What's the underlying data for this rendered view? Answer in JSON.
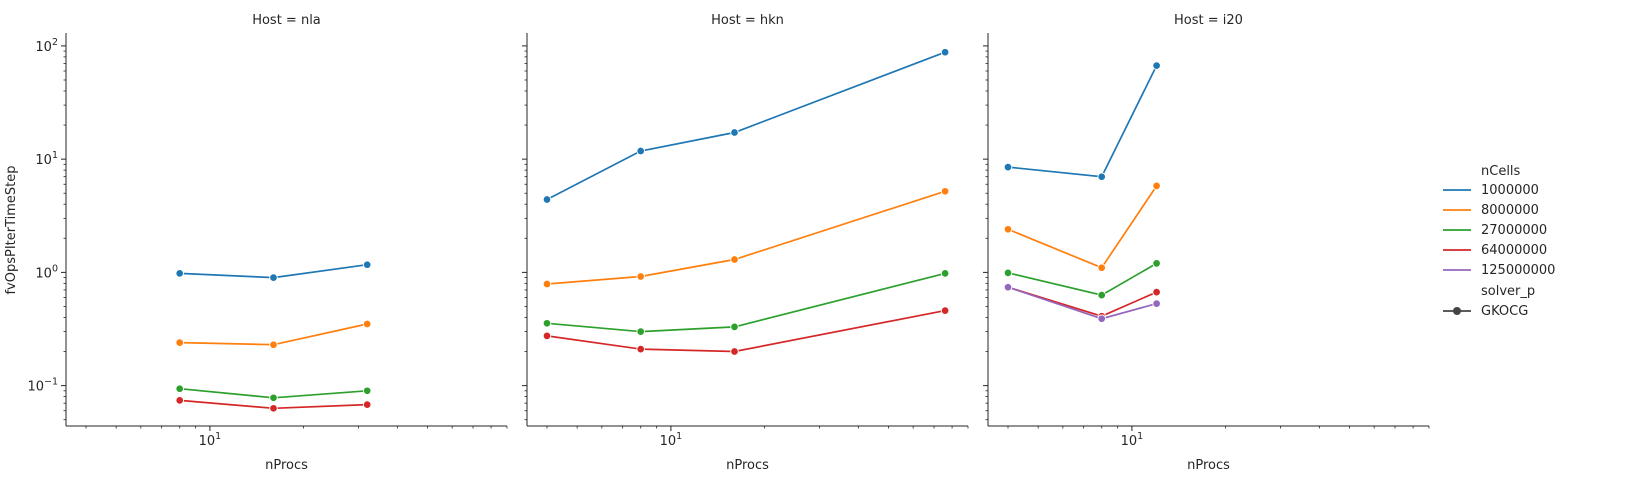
{
  "chart_data": {
    "type": "line",
    "ylabel": "fvOpsPIterTimeStep",
    "xlabel": "nProcs",
    "xscale": "log",
    "yscale": "log",
    "xlim": [
      3.45,
      90
    ],
    "ylim": [
      0.044,
      130
    ],
    "x_tick_major": [
      {
        "value": 10,
        "base": "10",
        "exp": "1"
      }
    ],
    "y_tick_major": [
      {
        "value": 0.1,
        "base": "10",
        "exp": "−1"
      },
      {
        "value": 1,
        "base": "10",
        "exp": "0"
      },
      {
        "value": 10,
        "base": "10",
        "exp": "1"
      },
      {
        "value": 100,
        "base": "10",
        "exp": "2"
      }
    ],
    "grid": false,
    "legend": {
      "position": "right",
      "hue_title": "nCells",
      "hue_entries": [
        {
          "label": "1000000",
          "color": "#1f77b4"
        },
        {
          "label": "8000000",
          "color": "#ff7f0e"
        },
        {
          "label": "27000000",
          "color": "#2ca02c"
        },
        {
          "label": "64000000",
          "color": "#d62728"
        },
        {
          "label": "125000000",
          "color": "#9467bd"
        }
      ],
      "style_title": "solver_p",
      "style_entries": [
        {
          "label": "GKOCG",
          "color": "#444444"
        }
      ]
    },
    "panels": [
      {
        "title": "Host = nla",
        "series": [
          {
            "name": "1000000",
            "color": "#1f77b4",
            "x": [
              8,
              16,
              32
            ],
            "y": [
              0.98,
              0.9,
              1.17
            ]
          },
          {
            "name": "8000000",
            "color": "#ff7f0e",
            "x": [
              8,
              16,
              32
            ],
            "y": [
              0.24,
              0.23,
              0.35
            ]
          },
          {
            "name": "27000000",
            "color": "#2ca02c",
            "x": [
              8,
              16,
              32
            ],
            "y": [
              0.094,
              0.078,
              0.09
            ]
          },
          {
            "name": "64000000",
            "color": "#d62728",
            "x": [
              8,
              16,
              32
            ],
            "y": [
              0.074,
              0.063,
              0.068
            ]
          }
        ]
      },
      {
        "title": "Host = hkn",
        "series": [
          {
            "name": "1000000",
            "color": "#1f77b4",
            "x": [
              4,
              8,
              16,
              76
            ],
            "y": [
              4.4,
              11.8,
              17.2,
              88
            ]
          },
          {
            "name": "8000000",
            "color": "#ff7f0e",
            "x": [
              4,
              8,
              16,
              76
            ],
            "y": [
              0.79,
              0.92,
              1.3,
              5.2
            ]
          },
          {
            "name": "27000000",
            "color": "#2ca02c",
            "x": [
              4,
              8,
              16,
              76
            ],
            "y": [
              0.355,
              0.3,
              0.33,
              0.98
            ]
          },
          {
            "name": "64000000",
            "color": "#d62728",
            "x": [
              4,
              8,
              16,
              76
            ],
            "y": [
              0.275,
              0.21,
              0.2,
              0.46
            ]
          }
        ]
      },
      {
        "title": "Host = i20",
        "series": [
          {
            "name": "1000000",
            "color": "#1f77b4",
            "x": [
              4,
              8,
              12
            ],
            "y": [
              8.5,
              7.0,
              67
            ]
          },
          {
            "name": "8000000",
            "color": "#ff7f0e",
            "x": [
              4,
              8,
              12
            ],
            "y": [
              2.4,
              1.1,
              5.8
            ]
          },
          {
            "name": "27000000",
            "color": "#2ca02c",
            "x": [
              4,
              8,
              12
            ],
            "y": [
              0.99,
              0.63,
              1.2
            ]
          },
          {
            "name": "64000000",
            "color": "#d62728",
            "x": [
              4,
              8,
              12
            ],
            "y": [
              0.74,
              0.41,
              0.67
            ]
          },
          {
            "name": "125000000",
            "color": "#9467bd",
            "x": [
              4,
              8,
              12
            ],
            "y": [
              0.74,
              0.39,
              0.53
            ]
          }
        ]
      }
    ]
  }
}
